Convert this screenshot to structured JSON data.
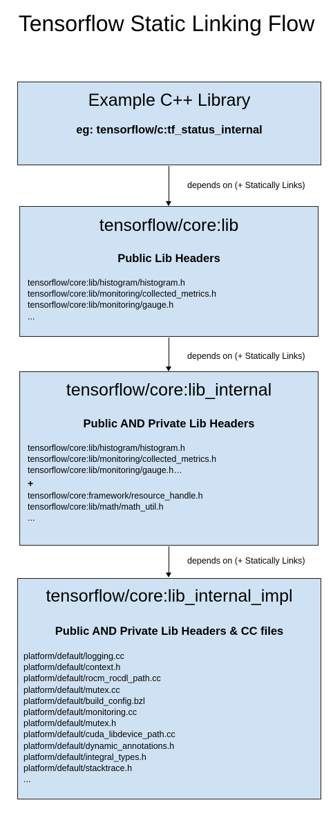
{
  "title": "Tensorflow Static Linking Flow",
  "edge_label": "depends on (+ Statically Links)",
  "boxes": [
    {
      "title": "Example C++ Library",
      "subtitle": "eg: tensorflow/c:tf_status_internal",
      "files": []
    },
    {
      "title": "tensorflow/core:lib",
      "subtitle": "Public Lib Headers",
      "files": [
        "tensorflow/core:lib/histogram/histogram.h",
        "tensorflow/core:lib/monitoring/collected_metrics.h",
        "tensorflow/core:lib/monitoring/gauge.h",
        "..."
      ]
    },
    {
      "title": "tensorflow/core:lib_internal",
      "subtitle": "Public AND Private Lib Headers",
      "files": [
        "tensorflow/core:lib/histogram/histogram.h",
        "tensorflow/core:lib/monitoring/collected_metrics.h",
        "tensorflow/core:lib/monitoring/gauge.h…",
        "+",
        "tensorflow/core:framework/resource_handle.h",
        "tensorflow/core:lib/math/math_util.h",
        "..."
      ]
    },
    {
      "title": "tensorflow/core:lib_internal_impl",
      "subtitle": "Public AND Private Lib Headers & CC files",
      "files": [
        "platform/default/logging.cc",
        "platform/default/context.h",
        "platform/default/rocm_rocdl_path.cc",
        "platform/default/mutex.cc",
        "platform/default/build_config.bzl",
        "platform/default/monitoring.cc",
        "platform/default/mutex.h",
        "platform/default/cuda_libdevice_path.cc",
        "platform/default/dynamic_annotations.h",
        "platform/default/integral_types.h",
        "platform/default/stacktrace.h",
        "..."
      ]
    }
  ]
}
